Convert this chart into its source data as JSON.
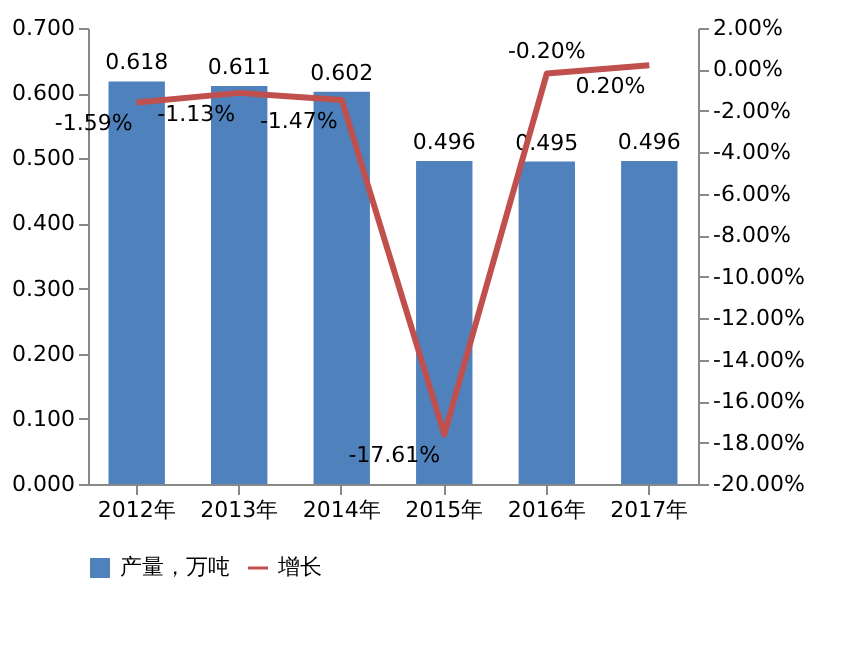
{
  "chart_data": {
    "type": "line",
    "categories": [
      "2012年",
      "2013年",
      "2014年",
      "2015年",
      "2016年",
      "2017年"
    ],
    "series": [
      {
        "name": "产量，万吨",
        "type": "bar",
        "color": "#4f81bd",
        "values": [
          0.618,
          0.611,
          0.602,
          0.496,
          0.495,
          0.496
        ],
        "value_labels": [
          "0.618",
          "0.611",
          "0.602",
          "0.496",
          "0.495",
          "0.496"
        ]
      },
      {
        "name": "增长",
        "axis": "y2",
        "color": "#c0504d",
        "values": [
          -1.59,
          -1.13,
          -1.47,
          -17.61,
          -0.2,
          0.2
        ],
        "value_labels": [
          "-1.59%",
          "-1.13%",
          "-1.47%",
          "-17.61%",
          "-0.20%",
          "0.20%"
        ]
      }
    ],
    "ylim": [
      0,
      0.7
    ],
    "yticks": [
      {
        "value": 0,
        "label": "0.000"
      },
      {
        "value": 0.1,
        "label": "0.100"
      },
      {
        "value": 0.2,
        "label": "0.200"
      },
      {
        "value": 0.3,
        "label": "0.300"
      },
      {
        "value": 0.4,
        "label": "0.400"
      },
      {
        "value": 0.5,
        "label": "0.500"
      },
      {
        "value": 0.6,
        "label": "0.600"
      },
      {
        "value": 0.7,
        "label": "0.700"
      }
    ],
    "y2lim": [
      -20,
      2
    ],
    "y2ticks": [
      {
        "value": -20,
        "label": "-20.00%"
      },
      {
        "value": -18,
        "label": "-18.00%"
      },
      {
        "value": -16,
        "label": "-16.00%"
      },
      {
        "value": -14,
        "label": "-14.00%"
      },
      {
        "value": -12,
        "label": "-12.00%"
      },
      {
        "value": -10,
        "label": "-10.00%"
      },
      {
        "value": -8,
        "label": "-8.00%"
      },
      {
        "value": -6,
        "label": "-6.00%"
      },
      {
        "value": -4,
        "label": "-4.00%"
      },
      {
        "value": -2,
        "label": "-2.00%"
      },
      {
        "value": 0,
        "label": "0.00%"
      },
      {
        "value": 2,
        "label": "2.00%"
      }
    ],
    "grid": false,
    "legend": "bottom",
    "marker": "none",
    "line_style": "solid"
  }
}
